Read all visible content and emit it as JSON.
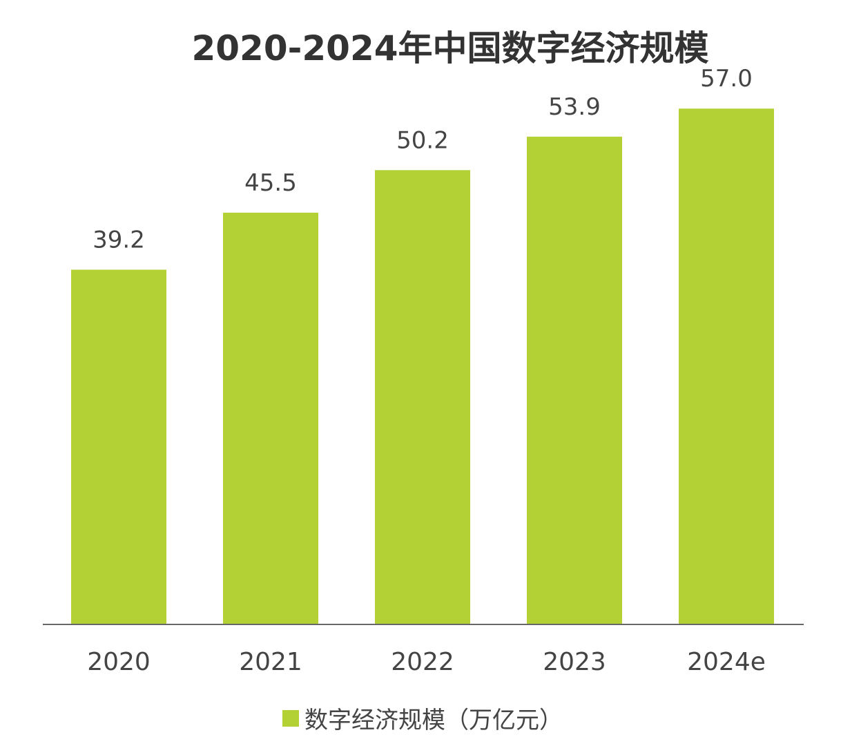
{
  "chart_data": {
    "type": "bar",
    "title": "2020-2024年中国数字经济规模",
    "categories": [
      "2020",
      "2021",
      "2022",
      "2023",
      "2024e"
    ],
    "series": [
      {
        "name": "数字经济规模（万亿元）",
        "values": [
          39.2,
          45.5,
          50.2,
          53.9,
          57.0
        ],
        "value_labels": [
          "39.2",
          "45.5",
          "50.2",
          "53.9",
          "57.0"
        ],
        "color": "#b3d135"
      }
    ],
    "ylim": [
      0,
      69
    ],
    "grid": false,
    "legend_position": "bottom",
    "axis_color": "#666666"
  }
}
